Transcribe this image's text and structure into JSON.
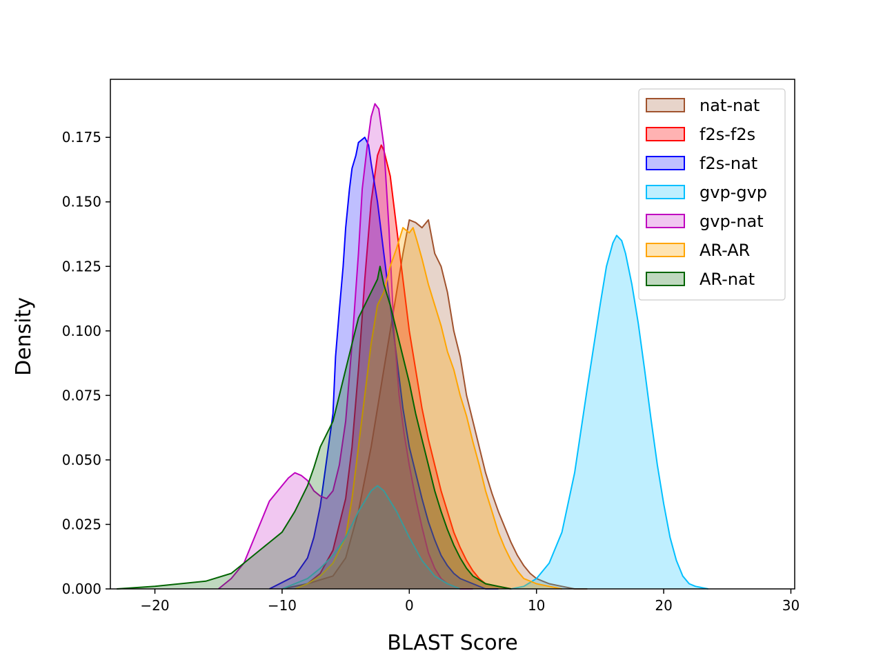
{
  "chart_data": {
    "type": "area",
    "title": "",
    "xlabel": "BLAST Score",
    "ylabel": "Density",
    "xlim": [
      -23.5,
      30.3
    ],
    "ylim": [
      0,
      0.1975
    ],
    "x_ticks": [
      -20,
      -10,
      0,
      10,
      20,
      30
    ],
    "x_tick_labels": [
      "−20",
      "−10",
      "0",
      "10",
      "20",
      "30"
    ],
    "y_ticks": [
      0,
      0.025,
      0.05,
      0.075,
      0.1,
      0.125,
      0.15,
      0.175
    ],
    "y_tick_labels": [
      "0.000",
      "0.025",
      "0.050",
      "0.075",
      "0.100",
      "0.125",
      "0.150",
      "0.175"
    ],
    "grid": false,
    "legend_position": "top-right",
    "series": [
      {
        "name": "nat-nat",
        "color": "#A0522D",
        "fill_opacity": 0.25,
        "points": [
          [
            -10,
            0
          ],
          [
            -8,
            0.002
          ],
          [
            -6,
            0.005
          ],
          [
            -5,
            0.012
          ],
          [
            -4,
            0.03
          ],
          [
            -3,
            0.055
          ],
          [
            -2.5,
            0.07
          ],
          [
            -2,
            0.085
          ],
          [
            -1.5,
            0.1
          ],
          [
            -1,
            0.115
          ],
          [
            -0.5,
            0.13
          ],
          [
            0,
            0.143
          ],
          [
            0.5,
            0.142
          ],
          [
            1,
            0.14
          ],
          [
            1.5,
            0.143
          ],
          [
            2,
            0.13
          ],
          [
            2.5,
            0.125
          ],
          [
            3,
            0.115
          ],
          [
            3.5,
            0.1
          ],
          [
            4,
            0.09
          ],
          [
            4.5,
            0.075
          ],
          [
            5,
            0.065
          ],
          [
            5.5,
            0.055
          ],
          [
            6,
            0.045
          ],
          [
            6.5,
            0.037
          ],
          [
            7,
            0.03
          ],
          [
            7.5,
            0.024
          ],
          [
            8,
            0.018
          ],
          [
            8.5,
            0.013
          ],
          [
            9,
            0.009
          ],
          [
            9.5,
            0.006
          ],
          [
            10,
            0.004
          ],
          [
            10.5,
            0.003
          ],
          [
            11,
            0.002
          ],
          [
            12,
            0.001
          ],
          [
            13,
            0
          ],
          [
            14,
            0
          ]
        ]
      },
      {
        "name": "f2s-f2s",
        "color": "#FF0000",
        "fill_opacity": 0.3,
        "points": [
          [
            -9,
            0
          ],
          [
            -8,
            0.002
          ],
          [
            -7,
            0.006
          ],
          [
            -6,
            0.015
          ],
          [
            -5,
            0.035
          ],
          [
            -4.5,
            0.055
          ],
          [
            -4,
            0.085
          ],
          [
            -3.5,
            0.12
          ],
          [
            -3,
            0.15
          ],
          [
            -2.5,
            0.168
          ],
          [
            -2.2,
            0.172
          ],
          [
            -2,
            0.17
          ],
          [
            -1.5,
            0.16
          ],
          [
            -1,
            0.14
          ],
          [
            -0.5,
            0.12
          ],
          [
            0,
            0.1
          ],
          [
            0.5,
            0.085
          ],
          [
            1,
            0.07
          ],
          [
            1.5,
            0.058
          ],
          [
            2,
            0.048
          ],
          [
            2.5,
            0.038
          ],
          [
            3,
            0.03
          ],
          [
            3.5,
            0.022
          ],
          [
            4,
            0.016
          ],
          [
            4.5,
            0.011
          ],
          [
            5,
            0.007
          ],
          [
            5.5,
            0.004
          ],
          [
            6,
            0.002
          ],
          [
            7,
            0.001
          ],
          [
            8,
            0
          ]
        ]
      },
      {
        "name": "f2s-nat",
        "color": "#0000FF",
        "fill_opacity": 0.25,
        "points": [
          [
            -11,
            0
          ],
          [
            -9,
            0.005
          ],
          [
            -8,
            0.012
          ],
          [
            -7.5,
            0.02
          ],
          [
            -7,
            0.032
          ],
          [
            -6.5,
            0.05
          ],
          [
            -6,
            0.068
          ],
          [
            -5.8,
            0.09
          ],
          [
            -5.5,
            0.108
          ],
          [
            -5.2,
            0.125
          ],
          [
            -5,
            0.14
          ],
          [
            -4.7,
            0.155
          ],
          [
            -4.5,
            0.163
          ],
          [
            -4.2,
            0.168
          ],
          [
            -4,
            0.173
          ],
          [
            -3.5,
            0.175
          ],
          [
            -3.2,
            0.172
          ],
          [
            -3,
            0.165
          ],
          [
            -2.5,
            0.15
          ],
          [
            -2,
            0.13
          ],
          [
            -1.5,
            0.11
          ],
          [
            -1,
            0.09
          ],
          [
            -0.5,
            0.07
          ],
          [
            0,
            0.055
          ],
          [
            0.5,
            0.045
          ],
          [
            1,
            0.035
          ],
          [
            1.5,
            0.026
          ],
          [
            2,
            0.019
          ],
          [
            2.5,
            0.013
          ],
          [
            3,
            0.009
          ],
          [
            3.5,
            0.006
          ],
          [
            4,
            0.004
          ],
          [
            5,
            0.002
          ],
          [
            6,
            0
          ],
          [
            7,
            0
          ]
        ]
      },
      {
        "name": "gvp-gvp",
        "color": "#00BFFF",
        "fill_opacity": 0.25,
        "points": [
          [
            8,
            0
          ],
          [
            9,
            0.001
          ],
          [
            10,
            0.004
          ],
          [
            11,
            0.01
          ],
          [
            12,
            0.022
          ],
          [
            13,
            0.045
          ],
          [
            14,
            0.078
          ],
          [
            15,
            0.11
          ],
          [
            15.5,
            0.125
          ],
          [
            16,
            0.134
          ],
          [
            16.3,
            0.137
          ],
          [
            16.7,
            0.135
          ],
          [
            17,
            0.13
          ],
          [
            17.5,
            0.118
          ],
          [
            18,
            0.103
          ],
          [
            18.5,
            0.085
          ],
          [
            19,
            0.066
          ],
          [
            19.5,
            0.048
          ],
          [
            20,
            0.033
          ],
          [
            20.5,
            0.02
          ],
          [
            21,
            0.011
          ],
          [
            21.5,
            0.005
          ],
          [
            22,
            0.002
          ],
          [
            22.5,
            0.001
          ],
          [
            23.5,
            0
          ]
        ]
      },
      {
        "name": "gvp-nat",
        "color": "#BF00BF",
        "fill_opacity": 0.22,
        "points": [
          [
            -15,
            0
          ],
          [
            -14,
            0.004
          ],
          [
            -13,
            0.01
          ],
          [
            -12,
            0.022
          ],
          [
            -11.5,
            0.028
          ],
          [
            -11,
            0.034
          ],
          [
            -10,
            0.04
          ],
          [
            -9.5,
            0.043
          ],
          [
            -9,
            0.045
          ],
          [
            -8.5,
            0.044
          ],
          [
            -8,
            0.042
          ],
          [
            -7.5,
            0.038
          ],
          [
            -7,
            0.036
          ],
          [
            -6.5,
            0.035
          ],
          [
            -6,
            0.038
          ],
          [
            -5.5,
            0.048
          ],
          [
            -5,
            0.065
          ],
          [
            -4.5,
            0.095
          ],
          [
            -4,
            0.13
          ],
          [
            -3.7,
            0.155
          ],
          [
            -3.3,
            0.172
          ],
          [
            -3,
            0.183
          ],
          [
            -2.7,
            0.188
          ],
          [
            -2.4,
            0.186
          ],
          [
            -2,
            0.172
          ],
          [
            -1.6,
            0.14
          ],
          [
            -1.2,
            0.1
          ],
          [
            -0.8,
            0.075
          ],
          [
            -0.4,
            0.06
          ],
          [
            0,
            0.048
          ],
          [
            0.5,
            0.035
          ],
          [
            1,
            0.024
          ],
          [
            1.5,
            0.014
          ],
          [
            2,
            0.008
          ],
          [
            2.5,
            0.004
          ],
          [
            3,
            0.002
          ],
          [
            4,
            0
          ],
          [
            5,
            0
          ]
        ]
      },
      {
        "name": "AR-AR",
        "color": "#FFA500",
        "fill_opacity": 0.3,
        "points": [
          [
            -9,
            0
          ],
          [
            -8,
            0.002
          ],
          [
            -7,
            0.005
          ],
          [
            -6,
            0.01
          ],
          [
            -5,
            0.02
          ],
          [
            -4.5,
            0.035
          ],
          [
            -4,
            0.055
          ],
          [
            -3.5,
            0.075
          ],
          [
            -3,
            0.095
          ],
          [
            -2.5,
            0.11
          ],
          [
            -2,
            0.115
          ],
          [
            -1.5,
            0.125
          ],
          [
            -1,
            0.132
          ],
          [
            -0.5,
            0.14
          ],
          [
            0,
            0.138
          ],
          [
            0.3,
            0.14
          ],
          [
            0.6,
            0.135
          ],
          [
            1,
            0.128
          ],
          [
            1.5,
            0.118
          ],
          [
            2,
            0.11
          ],
          [
            2.5,
            0.102
          ],
          [
            3,
            0.092
          ],
          [
            3.5,
            0.085
          ],
          [
            4,
            0.075
          ],
          [
            4.5,
            0.067
          ],
          [
            5,
            0.057
          ],
          [
            5.5,
            0.048
          ],
          [
            6,
            0.038
          ],
          [
            6.5,
            0.03
          ],
          [
            7,
            0.022
          ],
          [
            7.5,
            0.016
          ],
          [
            8,
            0.011
          ],
          [
            8.5,
            0.007
          ],
          [
            9,
            0.004
          ],
          [
            10,
            0.002
          ],
          [
            11,
            0.001
          ],
          [
            12,
            0
          ]
        ]
      },
      {
        "name": "AR-nat",
        "color": "#006400",
        "fill_opacity": 0.25,
        "points": [
          [
            -23,
            0
          ],
          [
            -20,
            0.001
          ],
          [
            -18,
            0.002
          ],
          [
            -16,
            0.003
          ],
          [
            -14,
            0.006
          ],
          [
            -13,
            0.01
          ],
          [
            -12,
            0.014
          ],
          [
            -11,
            0.018
          ],
          [
            -10,
            0.022
          ],
          [
            -9,
            0.03
          ],
          [
            -8,
            0.04
          ],
          [
            -7.5,
            0.047
          ],
          [
            -7,
            0.055
          ],
          [
            -6.5,
            0.06
          ],
          [
            -6,
            0.065
          ],
          [
            -5.5,
            0.075
          ],
          [
            -5,
            0.085
          ],
          [
            -4.5,
            0.095
          ],
          [
            -4,
            0.105
          ],
          [
            -3.5,
            0.11
          ],
          [
            -3,
            0.115
          ],
          [
            -2.5,
            0.12
          ],
          [
            -2.3,
            0.125
          ],
          [
            -2,
            0.118
          ],
          [
            -1.5,
            0.11
          ],
          [
            -1,
            0.1
          ],
          [
            -0.5,
            0.09
          ],
          [
            0,
            0.08
          ],
          [
            0.5,
            0.068
          ],
          [
            1,
            0.058
          ],
          [
            1.5,
            0.048
          ],
          [
            2,
            0.038
          ],
          [
            2.5,
            0.03
          ],
          [
            3,
            0.023
          ],
          [
            3.5,
            0.017
          ],
          [
            4,
            0.012
          ],
          [
            4.5,
            0.008
          ],
          [
            5,
            0.005
          ],
          [
            6,
            0.002
          ],
          [
            7,
            0.001
          ],
          [
            8,
            0
          ]
        ]
      },
      {
        "name": "",
        "color": "#3A9A9A",
        "fill_opacity": 0.2,
        "points": [
          [
            -10,
            0
          ],
          [
            -8,
            0.004
          ],
          [
            -7,
            0.008
          ],
          [
            -6,
            0.013
          ],
          [
            -5,
            0.02
          ],
          [
            -4,
            0.03
          ],
          [
            -3,
            0.038
          ],
          [
            -2.5,
            0.04
          ],
          [
            -2,
            0.038
          ],
          [
            -1,
            0.03
          ],
          [
            0,
            0.02
          ],
          [
            1,
            0.011
          ],
          [
            2,
            0.005
          ],
          [
            3,
            0.002
          ],
          [
            4,
            0
          ]
        ]
      }
    ]
  }
}
